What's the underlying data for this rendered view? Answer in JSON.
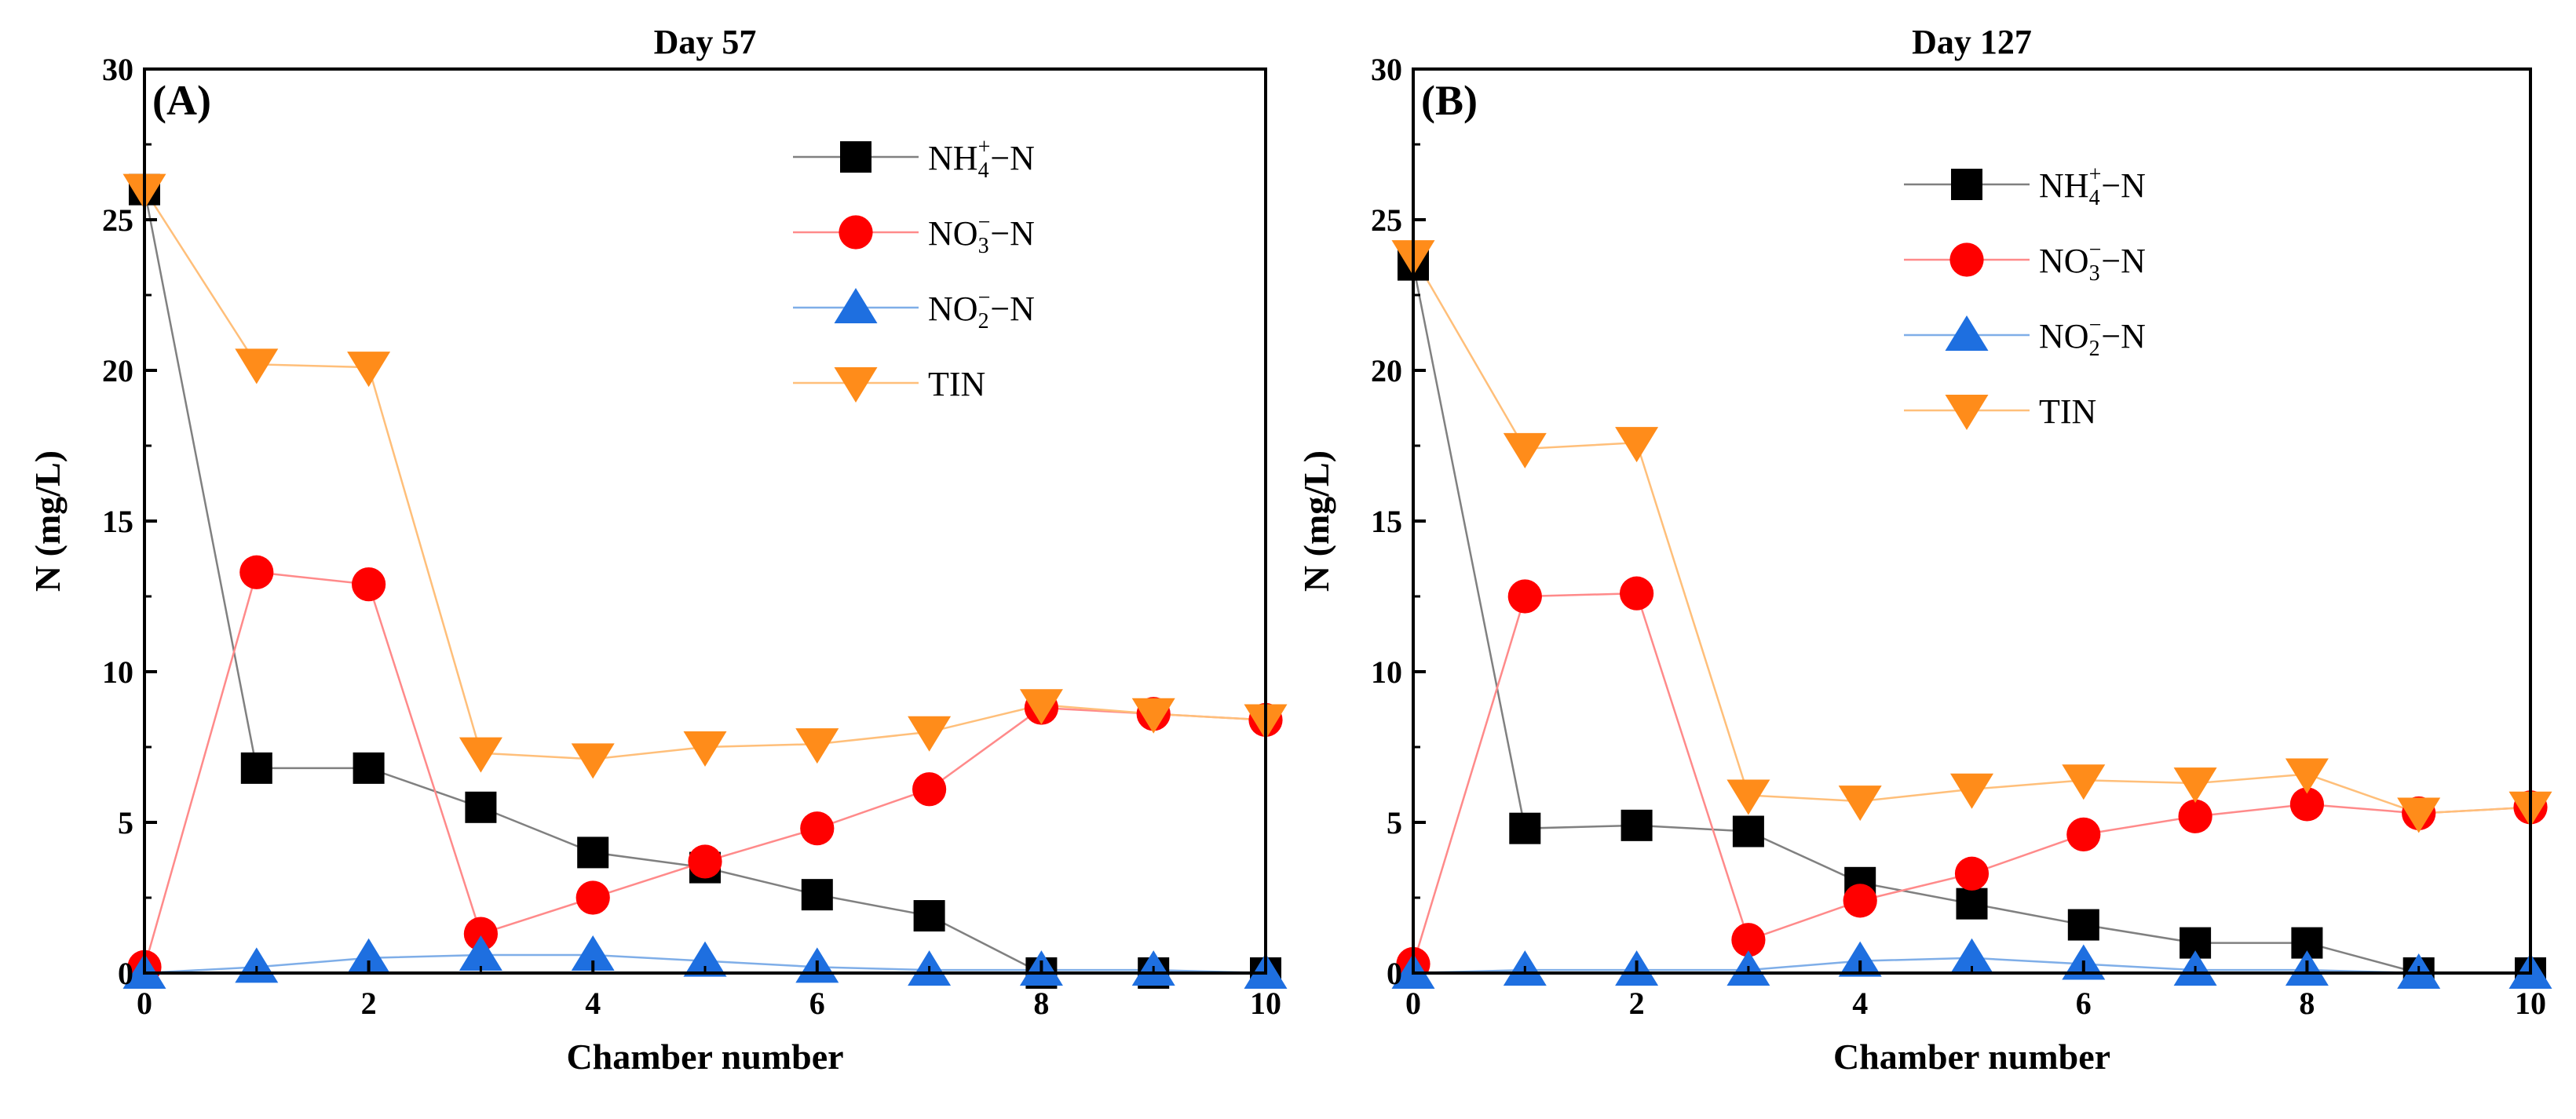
{
  "chart_data": [
    {
      "type": "line",
      "title": "Day 57",
      "panel_label": "(A)",
      "xlabel": "Chamber number",
      "ylabel": "N (mg/L)",
      "xlim": [
        0,
        10
      ],
      "ylim": [
        0,
        30
      ],
      "xticks": [
        0,
        2,
        4,
        6,
        8,
        10
      ],
      "yticks": [
        0,
        5,
        10,
        15,
        20,
        25,
        30
      ],
      "legend_position": "top-right",
      "x": [
        0,
        1,
        2,
        3,
        4,
        5,
        6,
        7,
        8,
        9,
        10
      ],
      "series": [
        {
          "name": "NH4+-N",
          "legend": {
            "base": "NH",
            "sub": "4",
            "sup": "+",
            "tail": "−N"
          },
          "marker": "square",
          "color": "#000000",
          "line_color": "#808080",
          "values": [
            26.0,
            6.8,
            6.8,
            5.5,
            4.0,
            3.5,
            2.6,
            1.9,
            0.0,
            0.0,
            0.0
          ]
        },
        {
          "name": "NO3--N",
          "legend": {
            "base": "NO",
            "sub": "3",
            "sup": "−",
            "tail": "−N"
          },
          "marker": "circle",
          "color": "#ff0000",
          "line_color": "#ff8a8a",
          "values": [
            0.2,
            13.3,
            12.9,
            1.3,
            2.5,
            3.7,
            4.8,
            6.1,
            8.8,
            8.6,
            8.4
          ]
        },
        {
          "name": "NO2--N",
          "legend": {
            "base": "NO",
            "sub": "2",
            "sup": "−",
            "tail": "−N"
          },
          "marker": "triangle-up",
          "color": "#1e6fe0",
          "line_color": "#7faee8",
          "values": [
            0.0,
            0.2,
            0.5,
            0.6,
            0.6,
            0.4,
            0.2,
            0.1,
            0.1,
            0.1,
            0.0
          ]
        },
        {
          "name": "TIN",
          "legend": {
            "base": "TIN",
            "sub": "",
            "sup": "",
            "tail": ""
          },
          "marker": "triangle-down",
          "color": "#ff8c1a",
          "line_color": "#ffbf7a",
          "values": [
            26.0,
            20.2,
            20.1,
            7.3,
            7.1,
            7.5,
            7.6,
            8.0,
            8.9,
            8.6,
            8.4
          ]
        }
      ]
    },
    {
      "type": "line",
      "title": "Day 127",
      "panel_label": "(B)",
      "xlabel": "Chamber number",
      "ylabel": "N (mg/L)",
      "xlim": [
        0,
        10
      ],
      "ylim": [
        0,
        30
      ],
      "xticks": [
        0,
        2,
        4,
        6,
        8,
        10
      ],
      "yticks": [
        0,
        5,
        10,
        15,
        20,
        25,
        30
      ],
      "legend_position": "top-right",
      "x": [
        0,
        1,
        2,
        3,
        4,
        5,
        6,
        7,
        8,
        9,
        10
      ],
      "series": [
        {
          "name": "NH4+-N",
          "legend": {
            "base": "NH",
            "sub": "4",
            "sup": "+",
            "tail": "−N"
          },
          "marker": "square",
          "color": "#000000",
          "line_color": "#808080",
          "values": [
            23.5,
            4.8,
            4.9,
            4.7,
            3.0,
            2.3,
            1.6,
            1.0,
            1.0,
            0.0,
            0.0
          ]
        },
        {
          "name": "NO3--N",
          "legend": {
            "base": "NO",
            "sub": "3",
            "sup": "−",
            "tail": "−N"
          },
          "marker": "circle",
          "color": "#ff0000",
          "line_color": "#ff8a8a",
          "values": [
            0.3,
            12.5,
            12.6,
            1.1,
            2.4,
            3.3,
            4.6,
            5.2,
            5.6,
            5.3,
            5.5
          ]
        },
        {
          "name": "NO2--N",
          "legend": {
            "base": "NO",
            "sub": "2",
            "sup": "−",
            "tail": "−N"
          },
          "marker": "triangle-up",
          "color": "#1e6fe0",
          "line_color": "#7faee8",
          "values": [
            0.0,
            0.1,
            0.1,
            0.1,
            0.4,
            0.5,
            0.3,
            0.1,
            0.1,
            0.0,
            0.0
          ]
        },
        {
          "name": "TIN",
          "legend": {
            "base": "TIN",
            "sub": "",
            "sup": "",
            "tail": ""
          },
          "marker": "triangle-down",
          "color": "#ff8c1a",
          "line_color": "#ffbf7a",
          "values": [
            23.8,
            17.4,
            17.6,
            5.9,
            5.7,
            6.1,
            6.4,
            6.3,
            6.6,
            5.3,
            5.5
          ]
        }
      ]
    }
  ]
}
